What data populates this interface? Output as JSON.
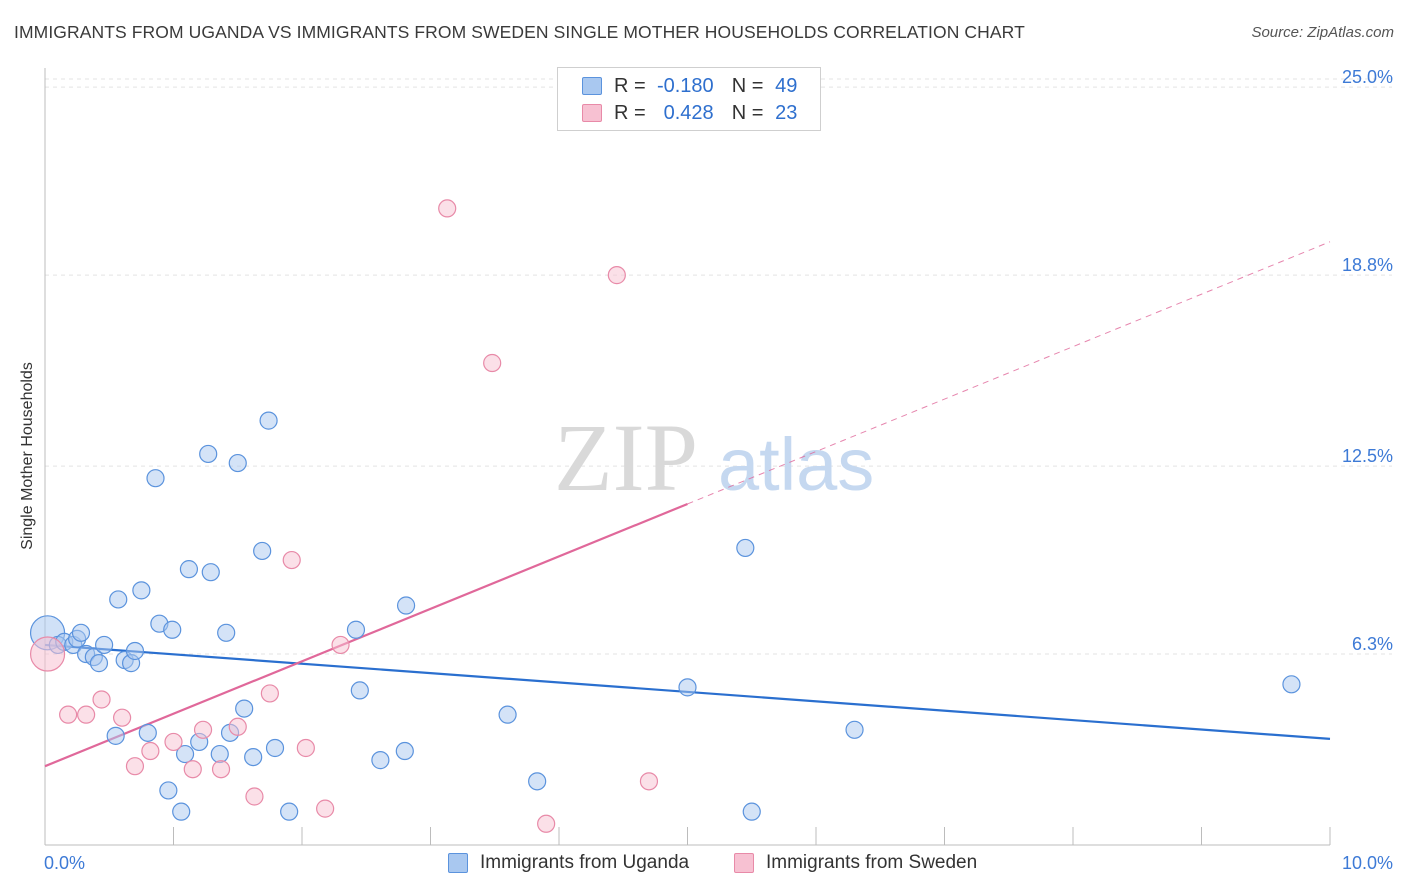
{
  "header": {
    "title": "IMMIGRANTS FROM UGANDA VS IMMIGRANTS FROM SWEDEN SINGLE MOTHER HOUSEHOLDS CORRELATION CHART",
    "source": "Source: ZipAtlas.com"
  },
  "colors": {
    "uganda_fill": "#a9c8f0",
    "uganda_stroke": "#5b93dd",
    "uganda_line": "#2a6fcf",
    "sweden_fill": "#f7c1d2",
    "sweden_stroke": "#e88aa8",
    "sweden_line": "#e0689a",
    "axis_text": "#3d7ad6"
  },
  "legend": {
    "uganda": {
      "r_label": "R =",
      "r_value": "-0.180",
      "n_label": "N =",
      "n_value": "49"
    },
    "sweden": {
      "r_label": "R =",
      "r_value": "0.428",
      "n_label": "N =",
      "n_value": "23"
    }
  },
  "bottom_legend": {
    "uganda": "Immigrants from Uganda",
    "sweden": "Immigrants from Sweden"
  },
  "watermark": {
    "zip": "ZIP",
    "atlas": "atlas"
  },
  "chart_data": {
    "type": "scatter",
    "title": "IMMIGRANTS FROM UGANDA VS IMMIGRANTS FROM SWEDEN SINGLE MOTHER HOUSEHOLDS CORRELATION CHART",
    "xlabel": "",
    "ylabel": "Single Mother Households",
    "xlim": [
      0,
      10
    ],
    "ylim": [
      0,
      25.5
    ],
    "x_tick_labels": [
      "0.0%",
      "10.0%"
    ],
    "y_ticks": [
      6.3,
      12.5,
      18.8,
      25.0
    ],
    "y_tick_labels": [
      "6.3%",
      "12.5%",
      "18.8%",
      "25.0%"
    ],
    "series": [
      {
        "name": "Immigrants from Uganda",
        "r": -0.18,
        "n": 49,
        "trend": {
          "x0": 0,
          "y0": 6.6,
          "x1": 10,
          "y1": 3.5,
          "x_end": 10
        },
        "points": [
          {
            "x": 0.02,
            "y": 7.0,
            "big": true
          },
          {
            "x": 0.1,
            "y": 6.6
          },
          {
            "x": 0.15,
            "y": 6.7
          },
          {
            "x": 0.22,
            "y": 6.6
          },
          {
            "x": 0.25,
            "y": 6.8
          },
          {
            "x": 0.28,
            "y": 7.0
          },
          {
            "x": 0.32,
            "y": 6.3
          },
          {
            "x": 0.38,
            "y": 6.2
          },
          {
            "x": 0.42,
            "y": 6.0
          },
          {
            "x": 0.46,
            "y": 6.6
          },
          {
            "x": 0.55,
            "y": 3.6
          },
          {
            "x": 0.57,
            "y": 8.1
          },
          {
            "x": 0.62,
            "y": 6.1
          },
          {
            "x": 0.67,
            "y": 6.0
          },
          {
            "x": 0.7,
            "y": 6.4
          },
          {
            "x": 0.75,
            "y": 8.4
          },
          {
            "x": 0.8,
            "y": 3.7
          },
          {
            "x": 0.86,
            "y": 12.1
          },
          {
            "x": 0.89,
            "y": 7.3
          },
          {
            "x": 0.96,
            "y": 1.8
          },
          {
            "x": 0.99,
            "y": 7.1
          },
          {
            "x": 1.06,
            "y": 1.1
          },
          {
            "x": 1.09,
            "y": 3.0
          },
          {
            "x": 1.12,
            "y": 9.1
          },
          {
            "x": 1.2,
            "y": 3.4
          },
          {
            "x": 1.27,
            "y": 12.9
          },
          {
            "x": 1.29,
            "y": 9.0
          },
          {
            "x": 1.36,
            "y": 3.0
          },
          {
            "x": 1.41,
            "y": 7.0
          },
          {
            "x": 1.44,
            "y": 3.7
          },
          {
            "x": 1.5,
            "y": 12.6
          },
          {
            "x": 1.55,
            "y": 4.5
          },
          {
            "x": 1.62,
            "y": 2.9
          },
          {
            "x": 1.69,
            "y": 9.7
          },
          {
            "x": 1.74,
            "y": 14.0
          },
          {
            "x": 1.79,
            "y": 3.2
          },
          {
            "x": 1.9,
            "y": 1.1
          },
          {
            "x": 2.42,
            "y": 7.1
          },
          {
            "x": 2.45,
            "y": 5.1
          },
          {
            "x": 2.61,
            "y": 2.8
          },
          {
            "x": 2.8,
            "y": 3.1
          },
          {
            "x": 2.81,
            "y": 7.9
          },
          {
            "x": 3.6,
            "y": 4.3
          },
          {
            "x": 3.83,
            "y": 2.1
          },
          {
            "x": 5.0,
            "y": 5.2
          },
          {
            "x": 5.45,
            "y": 9.8
          },
          {
            "x": 5.5,
            "y": 1.1
          },
          {
            "x": 6.3,
            "y": 3.8
          },
          {
            "x": 9.7,
            "y": 5.3
          }
        ]
      },
      {
        "name": "Immigrants from Sweden",
        "r": 0.428,
        "n": 23,
        "trend": {
          "x0": 0,
          "y0": 2.6,
          "x1": 10,
          "y1": 19.9,
          "x_solid_end": 5.0
        },
        "points": [
          {
            "x": 0.02,
            "y": 6.3,
            "big": true
          },
          {
            "x": 0.18,
            "y": 4.3
          },
          {
            "x": 0.32,
            "y": 4.3
          },
          {
            "x": 0.44,
            "y": 4.8
          },
          {
            "x": 0.6,
            "y": 4.2
          },
          {
            "x": 0.7,
            "y": 2.6
          },
          {
            "x": 0.82,
            "y": 3.1
          },
          {
            "x": 1.0,
            "y": 3.4
          },
          {
            "x": 1.15,
            "y": 2.5
          },
          {
            "x": 1.23,
            "y": 3.8
          },
          {
            "x": 1.37,
            "y": 2.5
          },
          {
            "x": 1.5,
            "y": 3.9
          },
          {
            "x": 1.63,
            "y": 1.6
          },
          {
            "x": 1.75,
            "y": 5.0
          },
          {
            "x": 1.92,
            "y": 9.4
          },
          {
            "x": 2.03,
            "y": 3.2
          },
          {
            "x": 2.18,
            "y": 1.2
          },
          {
            "x": 2.3,
            "y": 6.6
          },
          {
            "x": 3.13,
            "y": 21.0
          },
          {
            "x": 3.48,
            "y": 15.9
          },
          {
            "x": 3.9,
            "y": 0.7
          },
          {
            "x": 4.45,
            "y": 18.8
          },
          {
            "x": 4.7,
            "y": 2.1
          }
        ]
      }
    ]
  }
}
